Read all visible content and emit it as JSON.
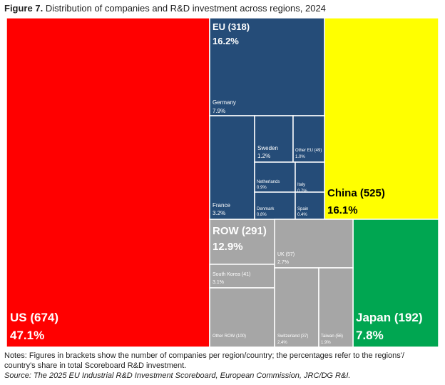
{
  "title": {
    "prefix": "Figure 7.",
    "text": "Distribution of companies and R&D investment across regions, 2024"
  },
  "notes": {
    "line1": "Notes: Figures in brackets show the number of companies per region/country; the percentages refer to the regions'/ country's share in total Scoreboard R&D investment.",
    "source": "Source: The 2025 EU Industrial R&D Investment Scoreboard, European Commission, JRC/DG R&I."
  },
  "colors": {
    "US": "#ff0000",
    "EU": "#254c78",
    "China": "#ffff00",
    "ROW": "#a6a6a6",
    "Japan": "#00a651",
    "border": "#ffffff"
  },
  "chart_data": {
    "type": "treemap",
    "title": "Distribution of companies and R&D investment across regions, 2024",
    "regions": [
      {
        "name": "US",
        "label": "US (674)",
        "companies": 674,
        "share": "47.1%",
        "value": 47.1
      },
      {
        "name": "EU",
        "label": "EU (318)",
        "companies": 318,
        "share": "16.2%",
        "value": 16.2,
        "children": [
          {
            "name": "Germany",
            "share": "7.9%",
            "value": 7.9
          },
          {
            "name": "France",
            "share": "3.2%",
            "value": 3.2
          },
          {
            "name": "Sweden",
            "share": "1.2%",
            "value": 1.2
          },
          {
            "name": "Other EU (49)",
            "share": "1.0%",
            "value": 1.0
          },
          {
            "name": "Netherlands",
            "share": "0.9%",
            "value": 0.9
          },
          {
            "name": "Italy",
            "share": "0.7%",
            "value": 0.7
          },
          {
            "name": "Denmark",
            "share": "0.8%",
            "value": 0.8
          },
          {
            "name": "Spain",
            "share": "0.4%",
            "value": 0.4
          }
        ]
      },
      {
        "name": "China",
        "label": "China (525)",
        "companies": 525,
        "share": "16.1%",
        "value": 16.1
      },
      {
        "name": "ROW",
        "label": "ROW (291)",
        "companies": 291,
        "share": "12.9%",
        "value": 12.9,
        "children": [
          {
            "name": "South Korea (41)",
            "share": "3.1%",
            "value": 3.1
          },
          {
            "name": "UK (57)",
            "share": "2.7%",
            "value": 2.7
          },
          {
            "name": "Other ROW (100)",
            "share": "",
            "value": 2.8
          },
          {
            "name": "Switzerland (37)",
            "share": "2.4%",
            "value": 2.4
          },
          {
            "name": "Taiwan (56)",
            "share": "1.9%",
            "value": 1.9
          }
        ]
      },
      {
        "name": "Japan",
        "label": "Japan (192)",
        "companies": 192,
        "share": "7.8%",
        "value": 7.8
      }
    ]
  }
}
